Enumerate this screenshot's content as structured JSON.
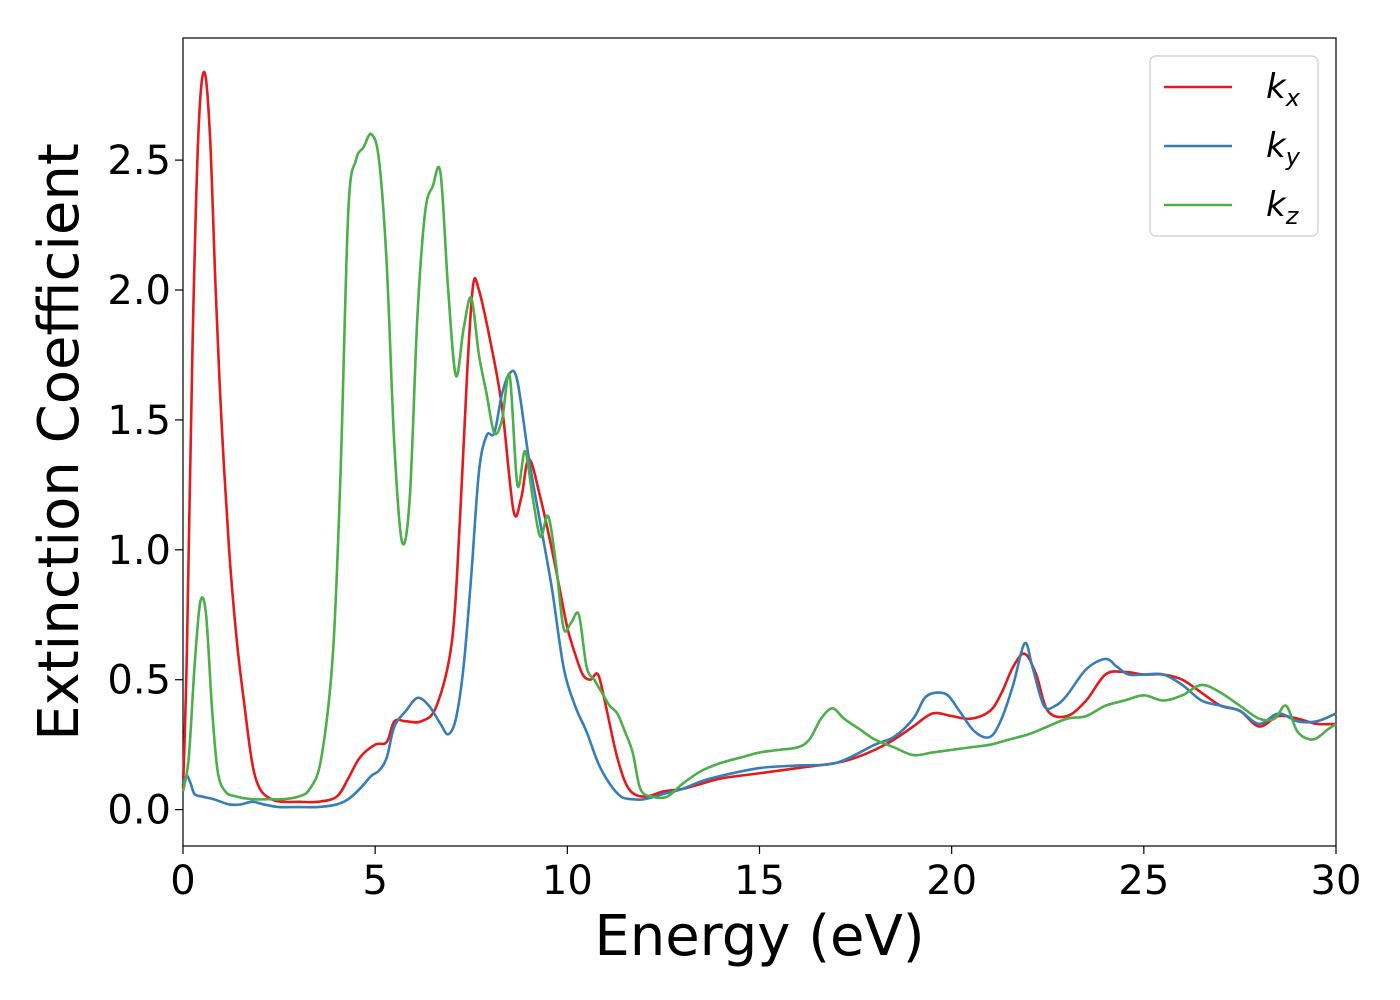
{
  "chart_data": {
    "type": "line",
    "xlabel": "Energy (eV)",
    "ylabel": "Extinction Coefficient",
    "xlim": [
      0,
      30
    ],
    "ylim": [
      -0.14,
      2.97
    ],
    "xticks": [
      "0",
      "5",
      "10",
      "15",
      "20",
      "25",
      "30"
    ],
    "yticks": [
      "0.0",
      "0.5",
      "1.0",
      "1.5",
      "2.0",
      "2.5"
    ],
    "grid": false,
    "legend_position": "top-right",
    "series": [
      {
        "name": "k",
        "subscript": "x",
        "color": "#e41a1c",
        "x": [
          0,
          0.1,
          0.25,
          0.4,
          0.55,
          0.7,
          0.85,
          1.0,
          1.2,
          1.4,
          1.6,
          1.8,
          2.0,
          2.3,
          2.6,
          3.0,
          3.5,
          4.0,
          4.3,
          4.6,
          5.0,
          5.3,
          5.5,
          5.8,
          6.2,
          6.6,
          7.0,
          7.2,
          7.4,
          7.55,
          7.7,
          8.0,
          8.3,
          8.6,
          8.8,
          9.0,
          9.3,
          9.6,
          9.8,
          10.0,
          10.2,
          10.4,
          10.6,
          10.8,
          11.0,
          11.3,
          11.6,
          12.0,
          12.5,
          13.0,
          13.5,
          14.0,
          15.0,
          16.0,
          17.0,
          17.5,
          18.0,
          18.5,
          19.0,
          19.5,
          20.0,
          20.5,
          21.0,
          21.3,
          21.6,
          21.9,
          22.2,
          22.5,
          23.0,
          23.5,
          24.0,
          24.5,
          25.0,
          25.5,
          26.0,
          26.5,
          27.0,
          27.5,
          28.0,
          28.5,
          29.0,
          29.5,
          30.0
        ],
        "y": [
          0.08,
          0.6,
          1.8,
          2.6,
          2.84,
          2.6,
          2.0,
          1.5,
          1.0,
          0.65,
          0.4,
          0.18,
          0.08,
          0.04,
          0.03,
          0.03,
          0.03,
          0.05,
          0.12,
          0.2,
          0.25,
          0.26,
          0.34,
          0.34,
          0.34,
          0.4,
          0.65,
          1.1,
          1.7,
          2.02,
          2.0,
          1.8,
          1.55,
          1.15,
          1.2,
          1.35,
          1.2,
          1.0,
          0.85,
          0.7,
          0.6,
          0.52,
          0.5,
          0.52,
          0.4,
          0.2,
          0.08,
          0.05,
          0.07,
          0.08,
          0.1,
          0.12,
          0.14,
          0.16,
          0.18,
          0.2,
          0.23,
          0.27,
          0.32,
          0.37,
          0.36,
          0.35,
          0.38,
          0.45,
          0.55,
          0.6,
          0.52,
          0.38,
          0.36,
          0.42,
          0.52,
          0.53,
          0.52,
          0.52,
          0.5,
          0.45,
          0.4,
          0.38,
          0.32,
          0.36,
          0.35,
          0.33,
          0.33
        ]
      },
      {
        "name": "k",
        "subscript": "y",
        "color": "#377eb8",
        "x": [
          0,
          0.1,
          0.2,
          0.3,
          0.5,
          0.8,
          1.2,
          1.5,
          1.8,
          2.1,
          2.5,
          3.0,
          3.5,
          4.0,
          4.3,
          4.6,
          4.9,
          5.1,
          5.3,
          5.5,
          5.8,
          6.1,
          6.4,
          6.7,
          6.9,
          7.1,
          7.3,
          7.5,
          7.7,
          7.9,
          8.1,
          8.3,
          8.5,
          8.7,
          9.0,
          9.3,
          9.6,
          9.9,
          10.2,
          10.5,
          10.8,
          11.1,
          11.4,
          11.7,
          12.0,
          12.5,
          13.0,
          13.5,
          14.0,
          15.0,
          16.0,
          17.0,
          18.0,
          18.5,
          19.0,
          19.3,
          19.6,
          19.9,
          20.2,
          20.6,
          21.0,
          21.3,
          21.6,
          21.9,
          22.1,
          22.4,
          22.7,
          23.0,
          23.5,
          24.0,
          24.3,
          24.6,
          25.0,
          25.5,
          26.0,
          26.5,
          27.0,
          27.5,
          28.0,
          28.5,
          29.0,
          29.5,
          30.0
        ],
        "y": [
          0.1,
          0.13,
          0.1,
          0.06,
          0.05,
          0.04,
          0.02,
          0.02,
          0.03,
          0.02,
          0.01,
          0.01,
          0.01,
          0.02,
          0.04,
          0.08,
          0.13,
          0.15,
          0.2,
          0.32,
          0.38,
          0.43,
          0.4,
          0.33,
          0.29,
          0.35,
          0.55,
          0.9,
          1.3,
          1.44,
          1.45,
          1.6,
          1.68,
          1.65,
          1.35,
          1.1,
          0.85,
          0.55,
          0.4,
          0.3,
          0.18,
          0.1,
          0.05,
          0.04,
          0.04,
          0.06,
          0.08,
          0.11,
          0.13,
          0.16,
          0.17,
          0.18,
          0.25,
          0.28,
          0.35,
          0.43,
          0.45,
          0.44,
          0.38,
          0.3,
          0.28,
          0.35,
          0.48,
          0.64,
          0.55,
          0.4,
          0.4,
          0.44,
          0.54,
          0.58,
          0.55,
          0.52,
          0.52,
          0.52,
          0.48,
          0.42,
          0.4,
          0.38,
          0.33,
          0.37,
          0.34,
          0.34,
          0.37
        ]
      },
      {
        "name": "k",
        "subscript": "z",
        "color": "#4daf4a",
        "x": [
          0,
          0.15,
          0.3,
          0.45,
          0.6,
          0.75,
          0.9,
          1.1,
          1.4,
          1.8,
          2.2,
          2.6,
          3.0,
          3.3,
          3.6,
          3.9,
          4.1,
          4.3,
          4.5,
          4.7,
          4.9,
          5.1,
          5.3,
          5.5,
          5.7,
          5.9,
          6.1,
          6.3,
          6.5,
          6.7,
          6.9,
          7.1,
          7.3,
          7.5,
          7.7,
          7.9,
          8.1,
          8.3,
          8.5,
          8.7,
          8.9,
          9.1,
          9.3,
          9.5,
          9.7,
          9.9,
          10.1,
          10.3,
          10.5,
          10.7,
          10.9,
          11.1,
          11.3,
          11.5,
          11.7,
          11.9,
          12.2,
          12.6,
          13.0,
          13.5,
          14.0,
          14.5,
          15.0,
          15.5,
          16.0,
          16.3,
          16.6,
          16.9,
          17.2,
          17.6,
          18.0,
          18.5,
          19.0,
          19.5,
          20.0,
          20.5,
          21.0,
          21.5,
          22.0,
          22.5,
          23.0,
          23.5,
          24.0,
          24.5,
          25.0,
          25.5,
          26.0,
          26.5,
          27.0,
          27.5,
          28.0,
          28.4,
          28.7,
          29.0,
          29.4,
          29.8,
          30.0
        ],
        "y": [
          0.07,
          0.2,
          0.55,
          0.8,
          0.75,
          0.4,
          0.15,
          0.07,
          0.05,
          0.04,
          0.04,
          0.04,
          0.05,
          0.08,
          0.2,
          0.6,
          1.3,
          2.3,
          2.5,
          2.55,
          2.6,
          2.5,
          2.1,
          1.4,
          1.03,
          1.2,
          1.9,
          2.3,
          2.4,
          2.45,
          2.0,
          1.67,
          1.85,
          1.97,
          1.75,
          1.6,
          1.45,
          1.5,
          1.67,
          1.25,
          1.38,
          1.2,
          1.05,
          1.13,
          0.95,
          0.7,
          0.72,
          0.75,
          0.55,
          0.5,
          0.45,
          0.4,
          0.37,
          0.3,
          0.22,
          0.08,
          0.05,
          0.05,
          0.1,
          0.15,
          0.18,
          0.2,
          0.22,
          0.23,
          0.24,
          0.27,
          0.35,
          0.39,
          0.35,
          0.31,
          0.27,
          0.24,
          0.21,
          0.22,
          0.23,
          0.24,
          0.25,
          0.27,
          0.29,
          0.32,
          0.35,
          0.36,
          0.4,
          0.42,
          0.44,
          0.42,
          0.44,
          0.48,
          0.45,
          0.4,
          0.35,
          0.35,
          0.4,
          0.3,
          0.27,
          0.31,
          0.33
        ]
      }
    ]
  }
}
